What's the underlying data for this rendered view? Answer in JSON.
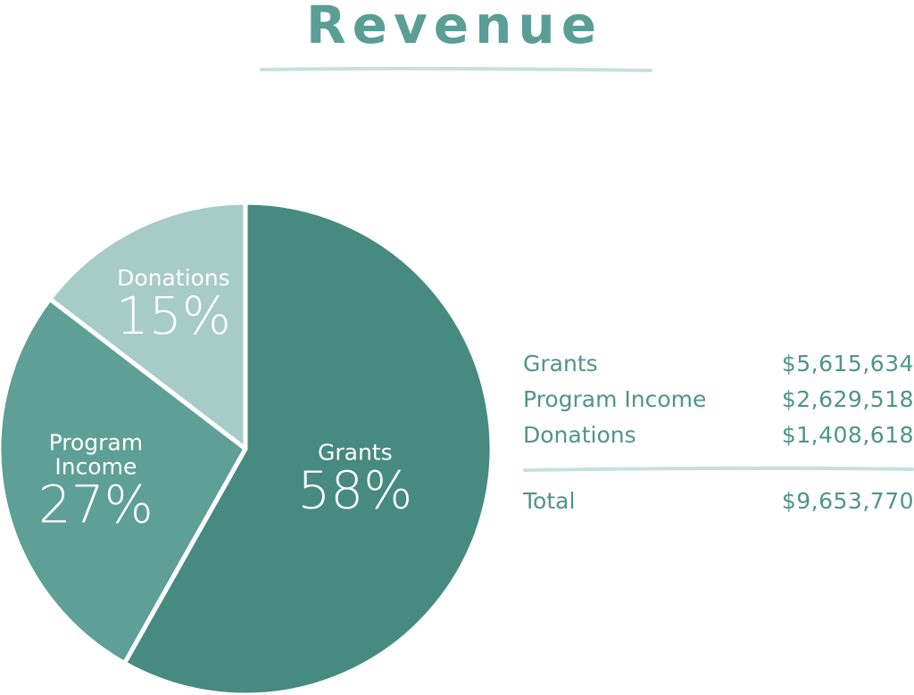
{
  "title": "Revenue",
  "colors": {
    "accent": "#5a9e96",
    "rule": "#c8e0dc",
    "text": "#4f948b",
    "slice_label": "#ffffff"
  },
  "chart_data": {
    "type": "pie",
    "title": "Revenue",
    "slices": [
      {
        "label": "Grants",
        "percent_label": "58%",
        "value": 5615634,
        "color": "#468a80"
      },
      {
        "label": "Program Income",
        "percent_label": "27%",
        "value": 2629518,
        "color": "#5e9f96"
      },
      {
        "label": "Donations",
        "percent_label": "15%",
        "value": 1408618,
        "color": "#a7cbc6"
      }
    ],
    "legend": {
      "placement": "right",
      "rows": [
        {
          "label": "Grants",
          "amount": "$5,615,634"
        },
        {
          "label": "Program Income",
          "amount": "$2,629,518"
        },
        {
          "label": "Donations",
          "amount": "$1,408,618"
        }
      ],
      "total": {
        "label": "Total",
        "amount": "$9,653,770"
      }
    }
  }
}
